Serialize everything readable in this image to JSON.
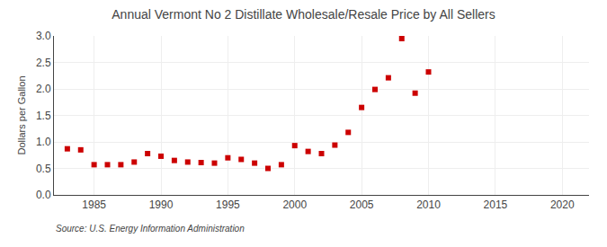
{
  "chart_data": {
    "type": "scatter",
    "title": "Annual Vermont No 2 Distillate Wholesale/Resale Price by All Sellers",
    "ylabel": "Dollars per Gallon",
    "annotations": [
      "Source: U.S. Energy Information Administration"
    ],
    "x": [
      1983,
      1984,
      1985,
      1986,
      1987,
      1988,
      1989,
      1990,
      1991,
      1992,
      1993,
      1994,
      1995,
      1996,
      1997,
      1998,
      1999,
      2000,
      2001,
      2002,
      2003,
      2004,
      2005,
      2006,
      2007,
      2008,
      2009,
      2010
    ],
    "values": [
      0.87,
      0.85,
      0.57,
      0.57,
      0.57,
      0.62,
      0.78,
      0.73,
      0.65,
      0.62,
      0.61,
      0.6,
      0.7,
      0.67,
      0.6,
      0.5,
      0.57,
      0.93,
      0.82,
      0.78,
      0.94,
      1.18,
      1.65,
      1.99,
      2.21,
      2.95,
      1.92,
      2.32
    ],
    "color": "#cc0000",
    "marker": "square",
    "xlim": [
      1982,
      2022
    ],
    "xticks": [
      1985,
      1990,
      1995,
      2000,
      2005,
      2010,
      2015,
      2020
    ],
    "ylim": [
      0.0,
      3.0
    ],
    "yticks": [
      {
        "value": 0,
        "label": "0.0"
      },
      0.5,
      {
        "value": 1,
        "label": "1.0"
      },
      1.5,
      {
        "value": 2,
        "label": "2.0"
      },
      2.5,
      {
        "value": 3,
        "label": "3.0"
      }
    ],
    "grid": true
  }
}
